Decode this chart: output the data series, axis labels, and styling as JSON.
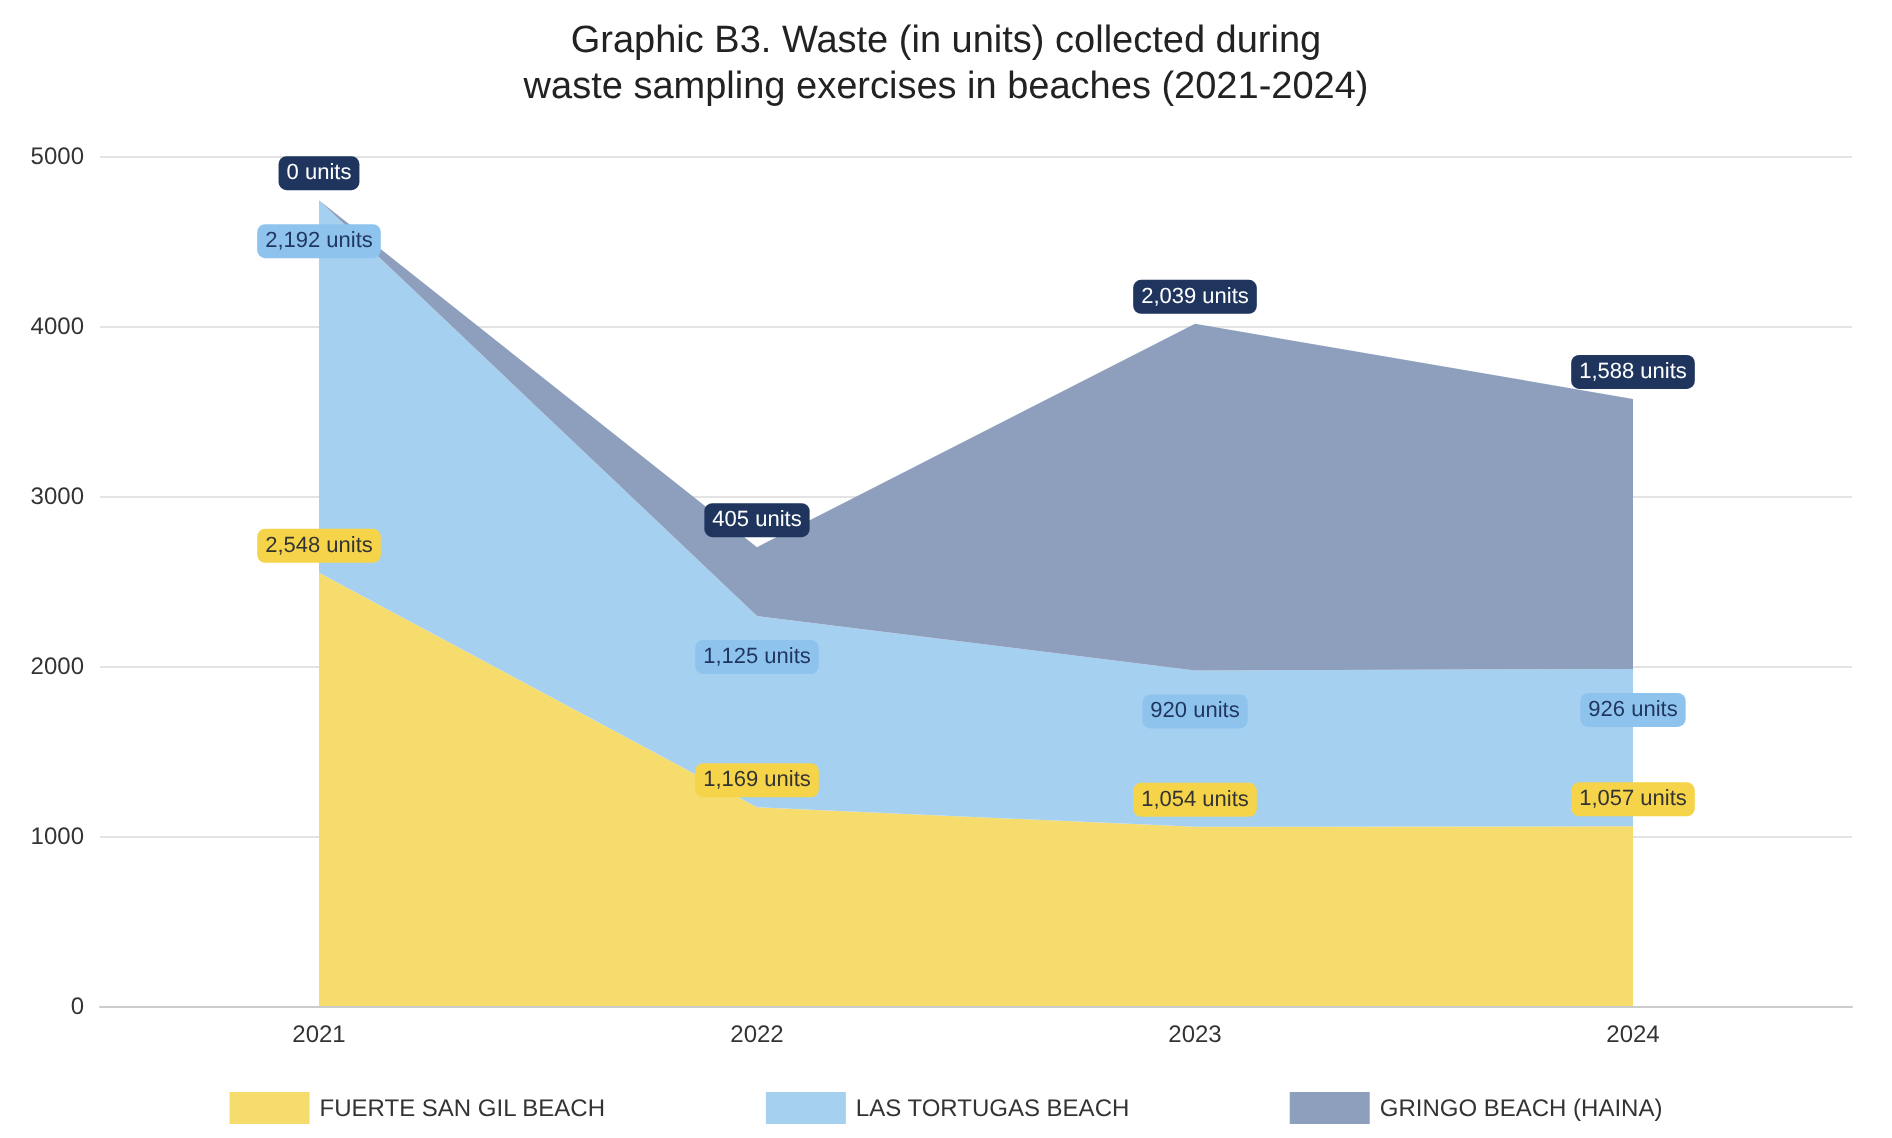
{
  "chart_data": {
    "type": "area",
    "title": "Graphic B3. Waste (in units) collected during\nwaste sampling exercises in beaches (2021-2024)",
    "categories": [
      "2021",
      "2022",
      "2023",
      "2024"
    ],
    "stacked": true,
    "series": [
      {
        "name": "FUERTE SAN GIL BEACH",
        "color": "#f6dc6c",
        "values": [
          2548,
          1169,
          1054,
          1057
        ],
        "value_labels": [
          "2,548 units",
          "1,169 units",
          "1,054 units",
          "1,057 units"
        ]
      },
      {
        "name": "LAS TORTUGAS BEACH",
        "color": "#a6d0f0",
        "values": [
          2192,
          1125,
          920,
          926
        ],
        "value_labels": [
          "2,192 units",
          "1,125 units",
          "920 units",
          "926 units"
        ]
      },
      {
        "name": "GRINGO BEACH (HAINA)",
        "color": "#8d9fbd",
        "values": [
          0,
          405,
          2039,
          1588
        ],
        "value_labels": [
          "0 units",
          "405 units",
          "2,039 units",
          "1,588 units"
        ]
      }
    ],
    "ylim": [
      0,
      5000
    ],
    "yticks": [
      0,
      1000,
      2000,
      3000,
      4000,
      5000
    ],
    "grid": "y",
    "legend": "bottom",
    "marker": "none"
  }
}
